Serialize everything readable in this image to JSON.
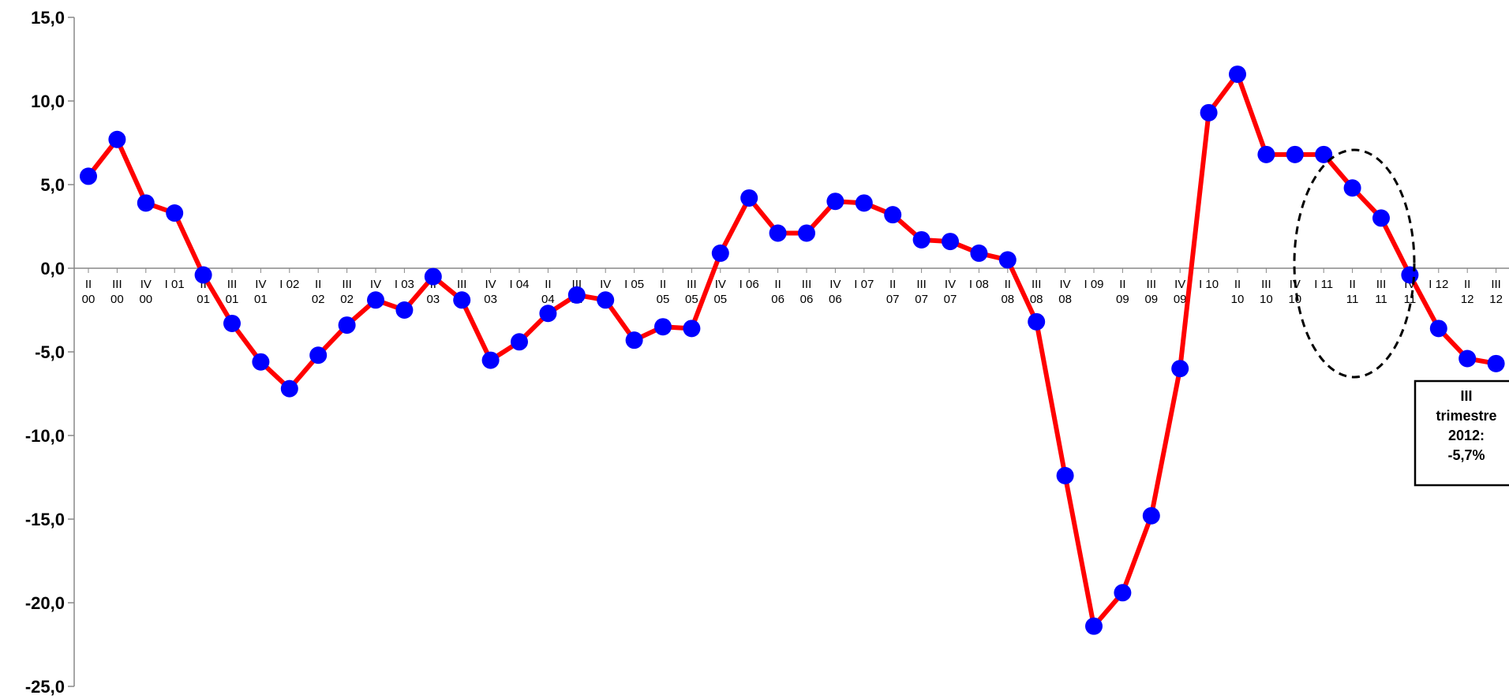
{
  "chart_data": {
    "type": "line",
    "ylim": [
      -25,
      15
    ],
    "y_ticks": [
      "15,0",
      "10,0",
      "5,0",
      "0,0",
      "-5,0",
      "-10,0",
      "-15,0",
      "-20,0",
      "-25,0"
    ],
    "tick_values": [
      15,
      10,
      5,
      0,
      -5,
      -10,
      -15,
      -20,
      -25
    ],
    "categories": [
      "II 00",
      "III 00",
      "IV 00",
      "I 01",
      "II 01",
      "III 01",
      "IV 01",
      "I 02",
      "II 02",
      "III 02",
      "IV 02",
      "I 03",
      "II 03",
      "III 03",
      "IV 03",
      "I 04",
      "II 04",
      "III 04",
      "IV 04",
      "I 05",
      "II 05",
      "III 05",
      "IV 05",
      "I 06",
      "II 06",
      "III 06",
      "IV 06",
      "I 07",
      "II 07",
      "III 07",
      "IV 07",
      "I 08",
      "II 08",
      "III 08",
      "IV 08",
      "I 09",
      "II 09",
      "III 09",
      "IV 09",
      "I 10",
      "II 10",
      "III 10",
      "IV 10",
      "I 11",
      "II 11",
      "III 11",
      "IV 11",
      "I 12",
      "II 12",
      "III 12"
    ],
    "x_labels": [
      [
        "II",
        "00"
      ],
      [
        "III",
        "00"
      ],
      [
        "IV",
        "00"
      ],
      [
        "I 01",
        ""
      ],
      [
        "II",
        "01"
      ],
      [
        "III",
        "01"
      ],
      [
        "IV",
        "01"
      ],
      [
        "I 02",
        ""
      ],
      [
        "II",
        "02"
      ],
      [
        "III",
        "02"
      ],
      [
        "IV",
        "02"
      ],
      [
        "I 03",
        ""
      ],
      [
        "II",
        "03"
      ],
      [
        "III",
        "03"
      ],
      [
        "IV",
        "03"
      ],
      [
        "I 04",
        ""
      ],
      [
        "II",
        "04"
      ],
      [
        "III",
        "04"
      ],
      [
        "IV",
        "04"
      ],
      [
        "I 05",
        ""
      ],
      [
        "II",
        "05"
      ],
      [
        "III",
        "05"
      ],
      [
        "IV",
        "05"
      ],
      [
        "I 06",
        ""
      ],
      [
        "II",
        "06"
      ],
      [
        "III",
        "06"
      ],
      [
        "IV",
        "06"
      ],
      [
        "I 07",
        ""
      ],
      [
        "II",
        "07"
      ],
      [
        "III",
        "07"
      ],
      [
        "IV",
        "07"
      ],
      [
        "I 08",
        ""
      ],
      [
        "II",
        "08"
      ],
      [
        "III",
        "08"
      ],
      [
        "IV",
        "08"
      ],
      [
        "I 09",
        ""
      ],
      [
        "II",
        "09"
      ],
      [
        "III",
        "09"
      ],
      [
        "IV",
        "09"
      ],
      [
        "I 10",
        ""
      ],
      [
        "II",
        "10"
      ],
      [
        "III",
        "10"
      ],
      [
        "IV",
        "10"
      ],
      [
        "I 11",
        ""
      ],
      [
        "II",
        "11"
      ],
      [
        "III",
        "11"
      ],
      [
        "IV",
        "11"
      ],
      [
        "I 12",
        ""
      ],
      [
        "II",
        "12"
      ],
      [
        "III",
        "12"
      ]
    ],
    "series": [
      {
        "values": [
          5.5,
          7.7,
          3.9,
          3.3,
          -0.4,
          -3.3,
          -5.6,
          -7.2,
          -5.2,
          -3.4,
          -1.9,
          -2.5,
          -0.5,
          -1.9,
          -5.5,
          -4.4,
          -2.7,
          -1.6,
          -1.9,
          -4.3,
          -3.5,
          -3.6,
          0.9,
          4.2,
          2.1,
          2.1,
          4.0,
          3.9,
          3.2,
          1.7,
          1.6,
          0.9,
          0.5,
          -3.2,
          -12.4,
          -21.4,
          -19.4,
          -14.8,
          -6.0,
          9.3,
          11.6,
          6.8,
          6.8,
          6.8,
          4.8,
          3.0,
          -0.4,
          -3.6,
          -5.4,
          -5.7
        ]
      }
    ],
    "line_color": "#ff0000",
    "marker_color": "#0000ff",
    "annotation": {
      "lines": [
        "III",
        "trimestre",
        "2012:",
        "-5,7%"
      ]
    },
    "highlight": "dashed ellipse around II 11 – IV 11"
  }
}
